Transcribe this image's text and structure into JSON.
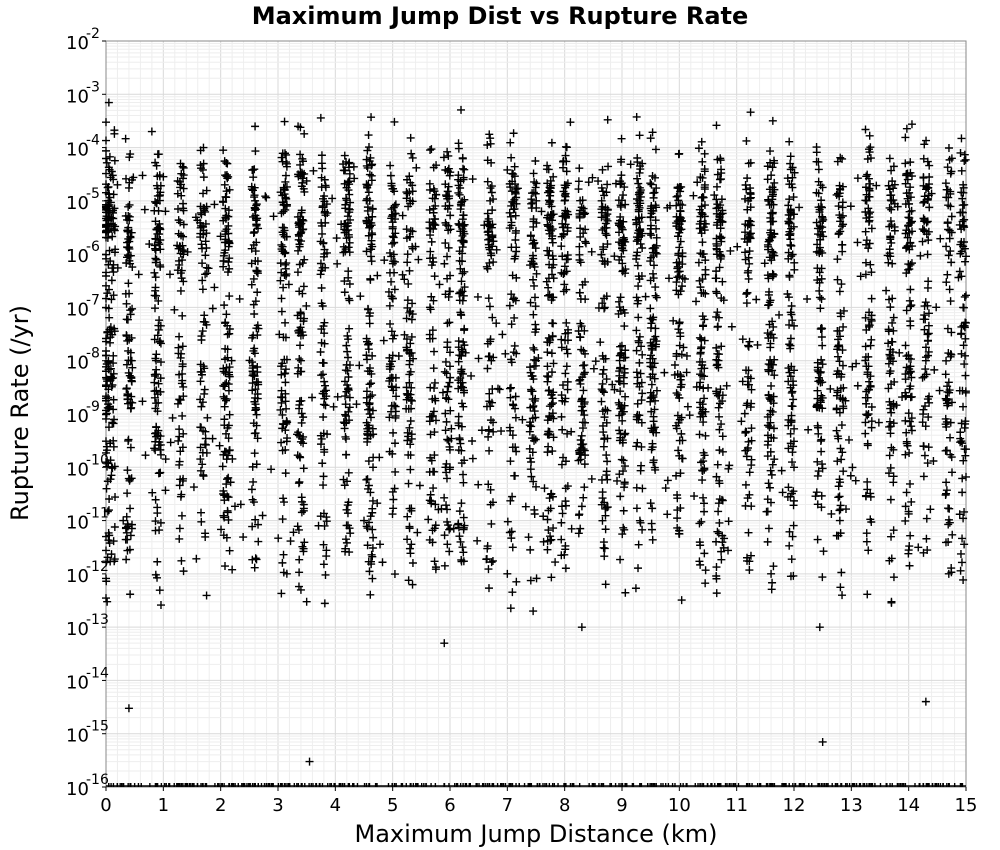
{
  "chart_data": {
    "type": "scatter",
    "title": "Maximum Jump Dist vs Rupture Rate",
    "xlabel": "Maximum Jump Distance (km)",
    "ylabel": "Rupture Rate (/yr)",
    "xlim": [
      0,
      15
    ],
    "ylim": [
      1e-16,
      0.01
    ],
    "yscale": "log",
    "grid": true,
    "marker": "+",
    "marker_color": "#000000",
    "x_ticks": [
      "0",
      "1",
      "2",
      "3",
      "4",
      "5",
      "6",
      "7",
      "8",
      "9",
      "10",
      "11",
      "12",
      "13",
      "14",
      "15"
    ],
    "y_ticks": [
      {
        "base": "10",
        "exp": "-2"
      },
      {
        "base": "10",
        "exp": "-3"
      },
      {
        "base": "10",
        "exp": "-4"
      },
      {
        "base": "10",
        "exp": "-5"
      },
      {
        "base": "10",
        "exp": "-6"
      },
      {
        "base": "10",
        "exp": "-7"
      },
      {
        "base": "10",
        "exp": "-8"
      },
      {
        "base": "10",
        "exp": "-9"
      },
      {
        "base": "10",
        "exp": "-10"
      },
      {
        "base": "10",
        "exp": "-11"
      },
      {
        "base": "10",
        "exp": "-12"
      },
      {
        "base": "10",
        "exp": "-13"
      },
      {
        "base": "10",
        "exp": "-14"
      },
      {
        "base": "10",
        "exp": "-15"
      },
      {
        "base": "10",
        "exp": "-16"
      }
    ],
    "x_clusters": [
      0,
      0.1,
      0.4,
      0.9,
      1.3,
      1.7,
      2.1,
      2.6,
      3.1,
      3.4,
      3.8,
      4.2,
      4.6,
      5.0,
      5.3,
      5.7,
      5.95,
      6.2,
      6.7,
      7.1,
      7.45,
      7.75,
      8.0,
      8.3,
      8.7,
      9.0,
      9.3,
      9.55,
      10.0,
      10.4,
      10.7,
      11.2,
      11.6,
      11.95,
      12.45,
      12.8,
      13.3,
      13.7,
      14.0,
      14.3,
      14.7,
      14.95
    ],
    "points": [
      [
        0.0,
        0.0003
      ],
      [
        0.05,
        0.0007
      ],
      [
        0.2,
        2e-05
      ],
      [
        0.4,
        3e-15
      ],
      [
        0.45,
        1e-08
      ],
      [
        0.1,
        1e-10
      ],
      [
        0.3,
        1e-11
      ],
      [
        0.02,
        3e-13
      ],
      [
        0.8,
        0.0002
      ],
      [
        1.3,
        5e-05
      ],
      [
        1.7,
        0.0001
      ],
      [
        2.2,
        1.2e-12
      ],
      [
        2.6,
        0.00025
      ],
      [
        2.6,
        1e-05
      ],
      [
        2.6,
        2e-09
      ],
      [
        3.35,
        0.00025
      ],
      [
        3.4,
        5e-13
      ],
      [
        3.5,
        3e-13
      ],
      [
        3.55,
        3e-16
      ],
      [
        3.4,
        1e-08
      ],
      [
        3.4,
        3e-10
      ],
      [
        3.45,
        2e-11
      ],
      [
        4.6,
        1e-05
      ],
      [
        4.6,
        5e-08
      ],
      [
        4.6,
        1e-09
      ],
      [
        4.5,
        1e-11
      ],
      [
        5.0,
        3e-06
      ],
      [
        5.3,
        1e-08
      ],
      [
        5.9,
        5e-14
      ],
      [
        6.0,
        2e-07
      ],
      [
        6.0,
        1e-10
      ],
      [
        6.7,
        0.00015
      ],
      [
        6.7,
        1e-05
      ],
      [
        7.0,
        1e-12
      ],
      [
        7.45,
        2e-13
      ],
      [
        7.5,
        1e-08
      ],
      [
        7.75,
        1e-05
      ],
      [
        8.1,
        0.0003
      ],
      [
        8.3,
        1e-13
      ],
      [
        8.7,
        1e-07
      ],
      [
        8.7,
        3e-12
      ],
      [
        9.0,
        1e-09
      ],
      [
        9.5,
        0.00015
      ],
      [
        9.5,
        5e-06
      ],
      [
        10.0,
        2e-09
      ],
      [
        10.4,
        1e-06
      ],
      [
        10.7,
        5e-11
      ],
      [
        11.2,
        1e-05
      ],
      [
        11.6,
        1e-12
      ],
      [
        11.95,
        3e-06
      ],
      [
        12.0,
        1e-10
      ],
      [
        12.45,
        1e-13
      ],
      [
        12.5,
        7e-16
      ],
      [
        12.5,
        2e-09
      ],
      [
        12.8,
        2e-07
      ],
      [
        12.8,
        1e-11
      ],
      [
        13.3,
        1e-09
      ],
      [
        13.7,
        3e-13
      ],
      [
        13.7,
        1e-05
      ],
      [
        14.3,
        4e-15
      ],
      [
        14.3,
        1e-08
      ],
      [
        14.7,
        1e-12
      ],
      [
        14.95,
        1e-07
      ],
      [
        14.95,
        2e-05
      ]
    ],
    "floor_value": 1e-16
  }
}
